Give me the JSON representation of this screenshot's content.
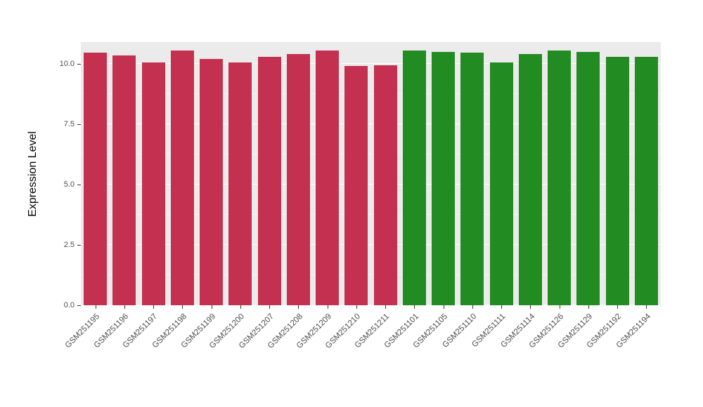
{
  "chart_data": {
    "type": "bar",
    "title": "",
    "xlabel": "",
    "ylabel": "Expression Level",
    "ylim": [
      0,
      10.9
    ],
    "yticks": [
      0,
      2.5,
      5,
      7.5,
      10
    ],
    "minor_yticks": [
      1.25,
      3.75,
      6.25,
      8.75
    ],
    "grid": true,
    "legend": "none",
    "panel_background": "#EBEBEB",
    "grid_color": "#FFFFFF",
    "bar_colors": {
      "group1_red": "#C43150",
      "group2_green": "#228B22"
    },
    "bars": [
      {
        "label": "GSM251195",
        "value": 10.45,
        "color": "#C43150"
      },
      {
        "label": "GSM251196",
        "value": 10.35,
        "color": "#C43150"
      },
      {
        "label": "GSM251197",
        "value": 10.05,
        "color": "#C43150"
      },
      {
        "label": "GSM251198",
        "value": 10.55,
        "color": "#C43150"
      },
      {
        "label": "GSM251199",
        "value": 10.2,
        "color": "#C43150"
      },
      {
        "label": "GSM251200",
        "value": 10.05,
        "color": "#C43150"
      },
      {
        "label": "GSM251207",
        "value": 10.3,
        "color": "#C43150"
      },
      {
        "label": "GSM251208",
        "value": 10.4,
        "color": "#C43150"
      },
      {
        "label": "GSM251209",
        "value": 10.55,
        "color": "#C43150"
      },
      {
        "label": "GSM251210",
        "value": 9.9,
        "color": "#C43150"
      },
      {
        "label": "GSM251211",
        "value": 9.95,
        "color": "#C43150"
      },
      {
        "label": "GSM251101",
        "value": 10.55,
        "color": "#228B22"
      },
      {
        "label": "GSM251105",
        "value": 10.5,
        "color": "#228B22"
      },
      {
        "label": "GSM251110",
        "value": 10.45,
        "color": "#228B22"
      },
      {
        "label": "GSM251111",
        "value": 10.05,
        "color": "#228B22"
      },
      {
        "label": "GSM251114",
        "value": 10.4,
        "color": "#228B22"
      },
      {
        "label": "GSM251126",
        "value": 10.55,
        "color": "#228B22"
      },
      {
        "label": "GSM251129",
        "value": 10.5,
        "color": "#228B22"
      },
      {
        "label": "GSM251192",
        "value": 10.3,
        "color": "#228B22"
      },
      {
        "label": "GSM251194",
        "value": 10.3,
        "color": "#228B22"
      }
    ]
  }
}
